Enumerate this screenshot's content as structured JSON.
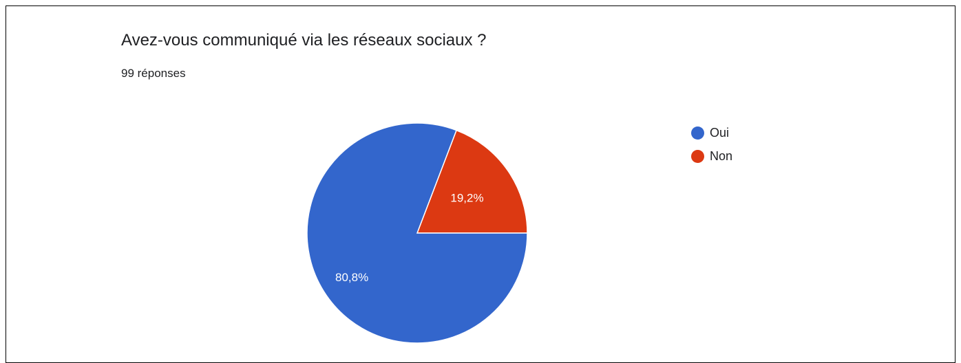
{
  "header": {
    "title": "Avez-vous communiqué via les réseaux sociaux ?",
    "responses": "99 réponses"
  },
  "chart_data": {
    "type": "pie",
    "title": "Avez-vous communiqué via les réseaux sociaux ?",
    "subtitle": "99 réponses",
    "legend_position": "right",
    "slices": [
      {
        "label": "Oui",
        "value": 80.8,
        "display": "80,8%",
        "color": "#3366cc"
      },
      {
        "label": "Non",
        "value": 19.2,
        "display": "19,2%",
        "color": "#dc3912"
      }
    ]
  },
  "legend": {
    "items": [
      {
        "label": "Oui",
        "color": "#3366cc"
      },
      {
        "label": "Non",
        "color": "#dc3912"
      }
    ]
  }
}
